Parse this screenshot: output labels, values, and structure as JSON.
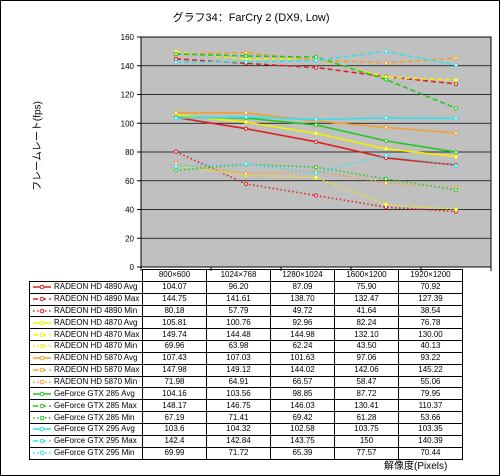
{
  "chart_data": {
    "type": "line",
    "title": "グラフ34：FarCry 2 (DX9, Low)",
    "xlabel": "解像度(Pixels)",
    "ylabel": "フレームレート(fps)",
    "ylim": [
      0,
      160
    ],
    "yticks": [
      0,
      20,
      40,
      60,
      80,
      100,
      120,
      140,
      160
    ],
    "grid": "horizontal",
    "categories": [
      "800×600",
      "1024×768",
      "1280×1024",
      "1600×1200",
      "1920×1200"
    ],
    "series": [
      {
        "name": "RADEON HD 4890 Avg",
        "color": "#e02020",
        "dash": "solid",
        "values": [
          "104.07",
          "96.20",
          "87.09",
          "75.90",
          "70.92"
        ]
      },
      {
        "name": "RADEON HD 4890 Max",
        "color": "#e02020",
        "dash": "dash",
        "values": [
          "144.75",
          "141.61",
          "138.70",
          "132.47",
          "127.39"
        ]
      },
      {
        "name": "RADEON HD 4890 Min",
        "color": "#e02020",
        "dash": "dot",
        "values": [
          "80.18",
          "57.79",
          "49.72",
          "41.64",
          "38.54"
        ]
      },
      {
        "name": "RADEON HD 4870 Avg",
        "color": "#f2f000",
        "dash": "solid",
        "values": [
          "105.81",
          "100.76",
          "92.96",
          "82.24",
          "76.78"
        ]
      },
      {
        "name": "RADEON HD 4870 Max",
        "color": "#f2f000",
        "dash": "dash",
        "values": [
          "149.74",
          "144.48",
          "144.98",
          "132.10",
          "130.00"
        ]
      },
      {
        "name": "RADEON HD 4870 Min",
        "color": "#f2f000",
        "dash": "dot",
        "values": [
          "69.96",
          "63.98",
          "62.24",
          "43.50",
          "40.13"
        ]
      },
      {
        "name": "RADEON HD 5870 Avg",
        "color": "#f4a030",
        "dash": "solid",
        "values": [
          "107.43",
          "107.03",
          "101.63",
          "97.06",
          "93.22"
        ]
      },
      {
        "name": "RADEON HD 5870 Max",
        "color": "#f4a030",
        "dash": "dash",
        "values": [
          "147.98",
          "149.12",
          "144.02",
          "142.06",
          "145.22"
        ]
      },
      {
        "name": "RADEON HD 5870 Min",
        "color": "#f4a030",
        "dash": "dot",
        "values": [
          "71.98",
          "64.91",
          "66.57",
          "58.47",
          "55.06"
        ]
      },
      {
        "name": "GeForce GTX 285 Avg",
        "color": "#22c822",
        "dash": "solid",
        "values": [
          "104.16",
          "103.56",
          "98.85",
          "87.72",
          "79.95"
        ]
      },
      {
        "name": "GeForce GTX 285 Max",
        "color": "#22c822",
        "dash": "dash",
        "values": [
          "148.17",
          "146.75",
          "146.03",
          "130.41",
          "110.37"
        ]
      },
      {
        "name": "GeForce GTX 285 Min",
        "color": "#22c822",
        "dash": "dot",
        "values": [
          "67.19",
          "71.41",
          "69.42",
          "61.28",
          "53.66"
        ]
      },
      {
        "name": "GeForce GTX 295 Avg",
        "color": "#30e0f0",
        "dash": "solid",
        "values": [
          "103.6",
          "104.32",
          "102.58",
          "103.75",
          "103.35"
        ]
      },
      {
        "name": "GeForce GTX 295 Max",
        "color": "#30e0f0",
        "dash": "dash",
        "values": [
          "142.4",
          "142.84",
          "143.75",
          "150",
          "140.39"
        ]
      },
      {
        "name": "GeForce GTX 295 Min",
        "color": "#30e0f0",
        "dash": "dot",
        "values": [
          "69.99",
          "71.72",
          "65.39",
          "77.57",
          "70.44"
        ]
      }
    ],
    "plot_background": "#c0c0c0"
  }
}
